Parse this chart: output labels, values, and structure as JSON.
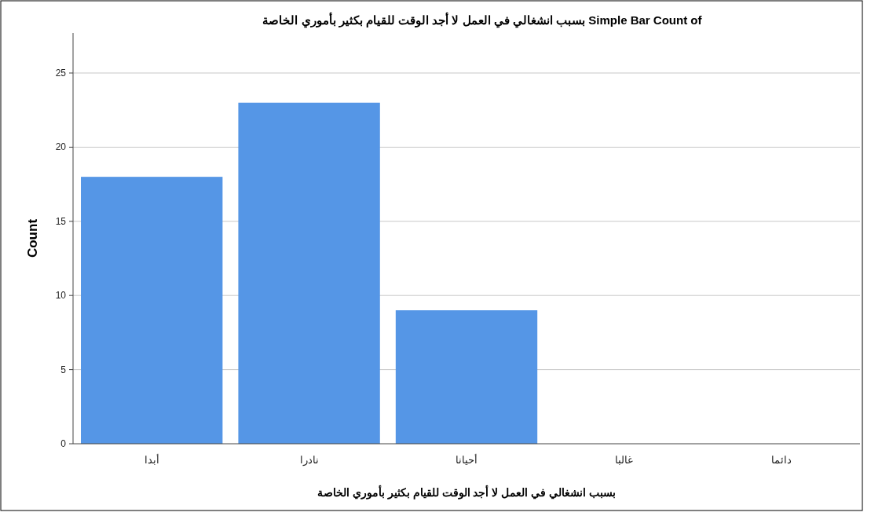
{
  "chart_data": {
    "type": "bar",
    "title": "Simple Bar Count of بسبب انشغالي في العمل لا أجد الوقت للقيام بكثير بأموري الخاصة",
    "xlabel": "بسبب انشغالي في العمل لا أجد الوقت للقيام بكثير بأموري الخاصة",
    "ylabel": "Count",
    "categories": [
      "أبدا",
      "نادرا",
      "أحيانا",
      "غالبا",
      "دائما"
    ],
    "values": [
      18,
      23,
      9,
      0,
      0
    ],
    "color": "#5596e6",
    "ylim": [
      0,
      27.7
    ],
    "yticks": [
      0,
      5,
      10,
      15,
      20,
      25
    ],
    "grid": "y"
  }
}
